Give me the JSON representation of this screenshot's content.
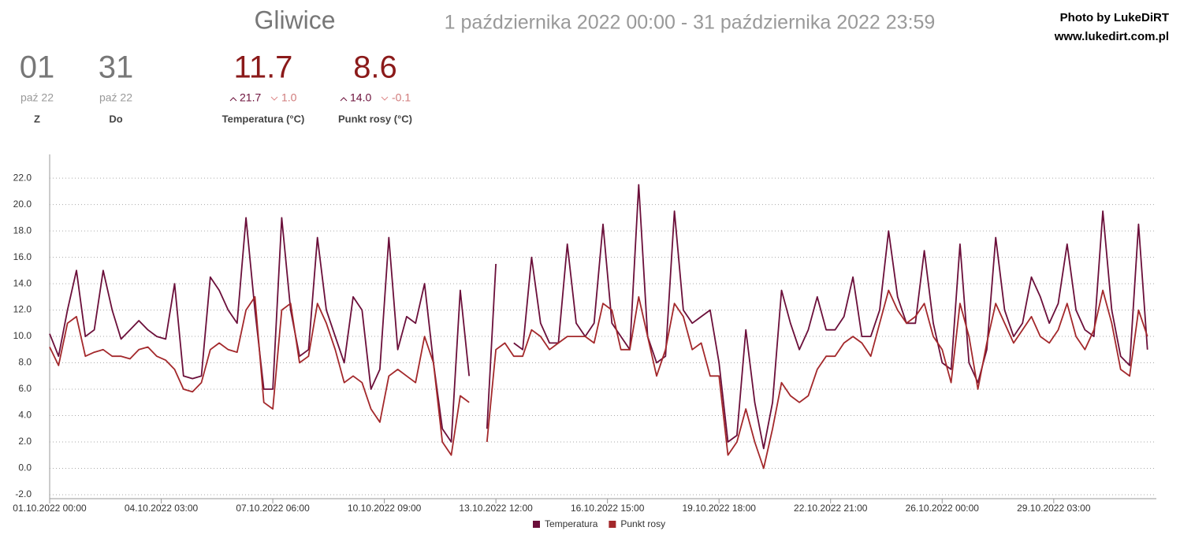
{
  "header": {
    "city": "Gliwice",
    "range": "1 października 2022 00:00 - 31 października 2022 23:59",
    "credit1": "Photo by LukeDiRT",
    "credit2": "www.lukedirt.com.pl"
  },
  "stats": [
    {
      "value": "01",
      "sub": "paź 22",
      "label": "Z"
    },
    {
      "value": "31",
      "sub": "paź 22",
      "label": "Do"
    },
    {
      "value": "11.7",
      "max": "21.7",
      "min": "1.0",
      "label": "Temperatura (°C)"
    },
    {
      "value": "8.6",
      "max": "14.0",
      "min": "-0.1",
      "label": "Punkt rosy (°C)"
    }
  ],
  "chart_data": {
    "type": "line",
    "x": [
      "01.10.2022 00:00",
      "01.10.2022 06:00",
      "01.10.2022 12:00",
      "01.10.2022 18:00",
      "02.10.2022 00:00",
      "02.10.2022 06:00",
      "02.10.2022 12:00",
      "02.10.2022 18:00",
      "03.10.2022 00:00",
      "03.10.2022 06:00",
      "03.10.2022 12:00",
      "03.10.2022 18:00",
      "04.10.2022 00:00",
      "04.10.2022 06:00",
      "04.10.2022 12:00",
      "04.10.2022 18:00",
      "05.10.2022 00:00",
      "05.10.2022 06:00",
      "05.10.2022 12:00",
      "05.10.2022 18:00",
      "06.10.2022 00:00",
      "06.10.2022 06:00",
      "06.10.2022 12:00",
      "06.10.2022 18:00",
      "07.10.2022 00:00",
      "07.10.2022 06:00",
      "07.10.2022 12:00",
      "07.10.2022 18:00",
      "08.10.2022 00:00",
      "08.10.2022 06:00",
      "08.10.2022 12:00",
      "08.10.2022 18:00",
      "09.10.2022 00:00",
      "09.10.2022 06:00",
      "09.10.2022 12:00",
      "09.10.2022 18:00",
      "10.10.2022 00:00",
      "10.10.2022 06:00",
      "10.10.2022 12:00",
      "10.10.2022 18:00",
      "11.10.2022 00:00",
      "11.10.2022 06:00",
      "11.10.2022 12:00",
      "11.10.2022 18:00",
      "12.10.2022 00:00",
      "12.10.2022 06:00",
      "12.10.2022 12:00",
      "12.10.2022 18:00",
      "13.10.2022 00:00",
      "13.10.2022 06:00",
      "13.10.2022 12:00",
      "13.10.2022 18:00",
      "14.10.2022 00:00",
      "14.10.2022 06:00",
      "14.10.2022 12:00",
      "14.10.2022 18:00",
      "15.10.2022 00:00",
      "15.10.2022 06:00",
      "15.10.2022 12:00",
      "15.10.2022 18:00",
      "16.10.2022 00:00",
      "16.10.2022 06:00",
      "16.10.2022 12:00",
      "16.10.2022 18:00",
      "17.10.2022 00:00",
      "17.10.2022 06:00",
      "17.10.2022 12:00",
      "17.10.2022 18:00",
      "18.10.2022 00:00",
      "18.10.2022 06:00",
      "18.10.2022 12:00",
      "18.10.2022 18:00",
      "19.10.2022 00:00",
      "19.10.2022 06:00",
      "19.10.2022 12:00",
      "19.10.2022 18:00",
      "20.10.2022 00:00",
      "20.10.2022 06:00",
      "20.10.2022 12:00",
      "20.10.2022 18:00",
      "21.10.2022 00:00",
      "21.10.2022 06:00",
      "21.10.2022 12:00",
      "21.10.2022 18:00",
      "22.10.2022 00:00",
      "22.10.2022 06:00",
      "22.10.2022 12:00",
      "22.10.2022 18:00",
      "23.10.2022 00:00",
      "23.10.2022 06:00",
      "23.10.2022 12:00",
      "23.10.2022 18:00",
      "24.10.2022 00:00",
      "24.10.2022 06:00",
      "24.10.2022 12:00",
      "24.10.2022 18:00",
      "25.10.2022 00:00",
      "25.10.2022 06:00",
      "25.10.2022 12:00",
      "25.10.2022 18:00",
      "26.10.2022 00:00",
      "26.10.2022 06:00",
      "26.10.2022 12:00",
      "26.10.2022 18:00",
      "27.10.2022 00:00",
      "27.10.2022 06:00",
      "27.10.2022 12:00",
      "27.10.2022 18:00",
      "28.10.2022 00:00",
      "28.10.2022 06:00",
      "28.10.2022 12:00",
      "28.10.2022 18:00",
      "29.10.2022 00:00",
      "29.10.2022 06:00",
      "29.10.2022 12:00",
      "29.10.2022 18:00",
      "30.10.2022 00:00",
      "30.10.2022 06:00",
      "30.10.2022 12:00",
      "30.10.2022 18:00",
      "31.10.2022 00:00",
      "31.10.2022 06:00",
      "31.10.2022 12:00",
      "31.10.2022 18:00"
    ],
    "series": [
      {
        "name": "Temperatura",
        "color": "#6b0f3a",
        "values": [
          10.2,
          8.5,
          12.0,
          15.0,
          10,
          10.5,
          15,
          12,
          9.8,
          10.5,
          11.2,
          10.5,
          10,
          9.8,
          14,
          7.0,
          6.8,
          7,
          14.5,
          13.5,
          12,
          11,
          19,
          12,
          6,
          6,
          19,
          12,
          8.5,
          9,
          17.5,
          12,
          10,
          8,
          13,
          12,
          6,
          7.5,
          17.5,
          9,
          11.5,
          11,
          14,
          8,
          3,
          2,
          13.5,
          7.0,
          null,
          3.0,
          15.5,
          null,
          9.5,
          9,
          16,
          11,
          9.5,
          9.5,
          17,
          11,
          10,
          11,
          18.5,
          11,
          10,
          9,
          21.5,
          10,
          8,
          8.5,
          19.5,
          12,
          11,
          11.5,
          12,
          8,
          2,
          2.5,
          10.5,
          5,
          1.5,
          5,
          13.5,
          11,
          9,
          10.5,
          13,
          10.5,
          10.5,
          11.5,
          14.5,
          10,
          10,
          12,
          18,
          13,
          11,
          11,
          16.5,
          11,
          8,
          7.5,
          17,
          8,
          6.5,
          9,
          17.5,
          12,
          10,
          11,
          14.5,
          13,
          11,
          12.5,
          17,
          12,
          10.5,
          10,
          19.5,
          12,
          8.5,
          7.8,
          18.5,
          9
        ]
      },
      {
        "name": "Punkt rosy",
        "color": "#a3282b",
        "values": [
          9.2,
          7.8,
          11.0,
          11.5,
          8.5,
          8.8,
          9.0,
          8.5,
          8.5,
          8.3,
          9.0,
          9.2,
          8.5,
          8.2,
          7.5,
          6.0,
          5.8,
          6.5,
          9.0,
          9.5,
          9.0,
          8.8,
          12,
          13,
          5,
          4.5,
          12,
          12.5,
          8,
          8.5,
          12.5,
          11,
          9,
          6.5,
          7,
          6.5,
          4.5,
          3.5,
          7,
          7.5,
          7,
          6.5,
          10,
          8,
          2,
          1,
          5.5,
          5,
          null,
          2,
          9,
          9.5,
          8.5,
          8.5,
          10.5,
          10,
          9,
          9.5,
          10,
          10,
          10,
          9.5,
          12.5,
          12,
          9,
          9,
          13,
          10,
          7,
          9,
          12.5,
          11.5,
          9,
          9.5,
          7,
          7,
          1,
          2,
          4.5,
          2,
          0,
          3,
          6.5,
          5.5,
          5,
          5.5,
          7.5,
          8.5,
          8.5,
          9.5,
          10,
          9.5,
          8.5,
          11,
          13.5,
          12,
          11,
          11.5,
          12.5,
          10,
          9,
          6.5,
          12.5,
          10,
          6,
          9.5,
          12.5,
          11,
          9.5,
          10.5,
          11.5,
          10,
          9.5,
          10.5,
          12.5,
          10,
          9,
          10.5,
          13.5,
          11,
          7.5,
          7.0,
          12,
          10
        ]
      }
    ],
    "xlim": [
      "01.10.2022 00:00",
      "31.10.2022 23:59"
    ],
    "xticks": [
      "01.10.2022 00:00",
      "04.10.2022 03:00",
      "07.10.2022 06:00",
      "10.10.2022 09:00",
      "13.10.2022 12:00",
      "16.10.2022 15:00",
      "19.10.2022 18:00",
      "22.10.2022 21:00",
      "26.10.2022 00:00",
      "29.10.2022 03:00"
    ],
    "ylim": [
      -2.3,
      23.8
    ],
    "yticks": [
      {
        "value": -2,
        "label": "-2.0"
      },
      {
        "value": 0,
        "label": "0.0"
      },
      {
        "value": 2,
        "label": "2.0"
      },
      {
        "value": 4,
        "label": "4.0"
      },
      {
        "value": 6,
        "label": "6.0"
      },
      {
        "value": 8,
        "label": "8.0"
      },
      {
        "value": 10,
        "label": "10.0"
      },
      {
        "value": 12,
        "label": "12.0"
      },
      {
        "value": 14,
        "label": "14.0"
      },
      {
        "value": 16,
        "label": "16.0"
      },
      {
        "value": 18,
        "label": "18.0"
      },
      {
        "value": 20,
        "label": "20.0"
      },
      {
        "value": 22,
        "label": "22.0"
      }
    ],
    "grid": true,
    "legend": "bottom"
  }
}
